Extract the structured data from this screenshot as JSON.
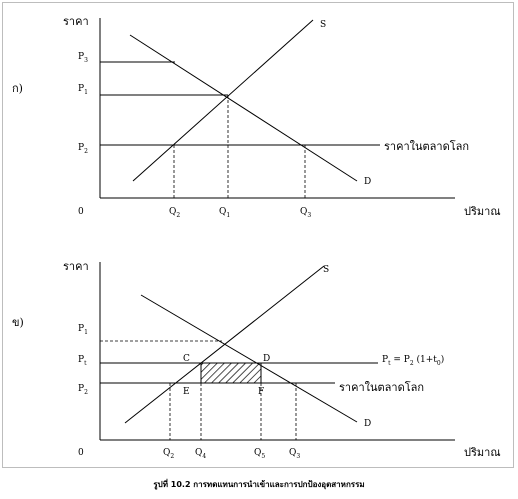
{
  "panel_a": {
    "panel_label": "ก)",
    "y_axis_title": "ราคา",
    "x_axis_title": "ปริมาณ",
    "origin": "0",
    "supply_label": "S",
    "demand_label": "D",
    "world_price_label": "ราคาในตลาดโลก",
    "price_ticks": [
      {
        "base": "P",
        "sub": "3"
      },
      {
        "base": "P",
        "sub": "1"
      },
      {
        "base": "P",
        "sub": "2"
      }
    ],
    "quantity_ticks": [
      {
        "base": "Q",
        "sub": "2"
      },
      {
        "base": "Q",
        "sub": "1"
      },
      {
        "base": "Q",
        "sub": "3"
      }
    ]
  },
  "panel_b": {
    "panel_label": "ข)",
    "y_axis_title": "ราคา",
    "x_axis_title": "ปริมาณ",
    "origin": "0",
    "supply_label": "S",
    "demand_label": "D",
    "world_price_label": "ราคาในตลาดโลก",
    "tariff_price_formula": {
      "p_t": "P",
      "p_t_sub": "t",
      "eq": " = P",
      "p2_sub": "2",
      "rest": " (1+t",
      "t_sub": "0",
      "close": ")"
    },
    "price_ticks": [
      {
        "base": "P",
        "sub": "1"
      },
      {
        "base": "P",
        "sub": "t"
      },
      {
        "base": "P",
        "sub": "2"
      }
    ],
    "quantity_ticks": [
      {
        "base": "Q",
        "sub": "2"
      },
      {
        "base": "Q",
        "sub": "4"
      },
      {
        "base": "Q",
        "sub": "5"
      },
      {
        "base": "Q",
        "sub": "3"
      }
    ],
    "points": [
      "C",
      "D",
      "E",
      "F"
    ]
  },
  "caption": "รูปที่ 10.2 การทดแทนการนำเข้าและการปกป้องอุตสาหกรรม"
}
